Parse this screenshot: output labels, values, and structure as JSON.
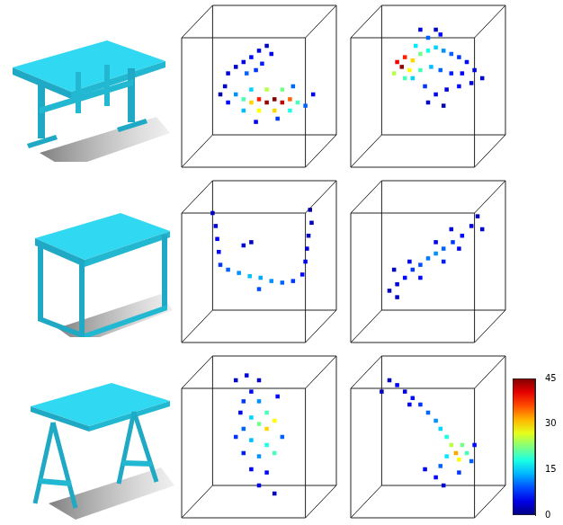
{
  "chart_data": [
    {
      "type": "scatter",
      "xlim": [
        0,
        100
      ],
      "ylim": [
        0,
        100
      ],
      "tick_labels": false,
      "grid": false,
      "x": [
        35,
        40,
        45,
        50,
        55,
        58,
        48,
        42,
        52,
        30,
        35,
        40,
        45,
        50,
        55,
        60,
        65,
        70,
        75,
        80,
        50,
        60,
        70,
        45,
        55,
        65,
        40,
        30,
        85,
        62,
        48,
        72,
        28,
        25
      ],
      "y": [
        62,
        65,
        68,
        72,
        75,
        70,
        60,
        58,
        64,
        58,
        45,
        42,
        40,
        42,
        40,
        42,
        40,
        42,
        40,
        38,
        35,
        35,
        35,
        48,
        48,
        48,
        35,
        40,
        45,
        30,
        28,
        50,
        50,
        45
      ],
      "values": [
        3,
        5,
        6,
        4,
        3,
        5,
        8,
        10,
        7,
        4,
        12,
        20,
        30,
        38,
        44,
        45,
        42,
        35,
        20,
        10,
        28,
        30,
        18,
        15,
        25,
        22,
        14,
        6,
        5,
        8,
        5,
        10,
        3,
        2
      ]
    },
    {
      "type": "scatter",
      "xlim": [
        0,
        100
      ],
      "ylim": [
        0,
        100
      ],
      "tick_labels": false,
      "grid": false,
      "x": [
        30,
        33,
        35,
        40,
        38,
        45,
        50,
        55,
        60,
        65,
        70,
        75,
        45,
        52,
        58,
        65,
        72,
        80,
        42,
        50,
        58,
        40,
        48,
        55,
        62,
        70,
        78,
        85,
        35,
        28,
        45,
        50,
        60,
        55
      ],
      "y": [
        65,
        62,
        68,
        66,
        60,
        70,
        72,
        74,
        72,
        70,
        68,
        65,
        60,
        62,
        60,
        58,
        58,
        60,
        75,
        80,
        82,
        55,
        50,
        45,
        48,
        50,
        52,
        55,
        55,
        58,
        85,
        40,
        38,
        85
      ],
      "values": [
        40,
        44,
        38,
        30,
        28,
        22,
        18,
        15,
        12,
        10,
        8,
        6,
        20,
        14,
        10,
        7,
        5,
        4,
        16,
        10,
        6,
        15,
        8,
        5,
        4,
        6,
        4,
        3,
        20,
        25,
        4,
        3,
        2,
        3
      ]
    },
    {
      "type": "scatter",
      "xlim": [
        0,
        100
      ],
      "ylim": [
        0,
        100
      ],
      "tick_labels": false,
      "grid": false,
      "x": [
        20,
        22,
        23,
        24,
        25,
        30,
        37,
        44,
        51,
        58,
        65,
        72,
        50,
        78,
        80,
        81,
        82,
        84,
        83,
        40,
        45
      ],
      "y": [
        80,
        72,
        64,
        56,
        48,
        45,
        43,
        41,
        40,
        38,
        37,
        38,
        33,
        42,
        50,
        58,
        66,
        74,
        82,
        60,
        62
      ],
      "values": [
        3,
        4,
        5,
        6,
        8,
        10,
        12,
        14,
        13,
        12,
        10,
        8,
        9,
        6,
        5,
        4,
        3,
        3,
        2,
        4,
        3
      ]
    },
    {
      "type": "scatter",
      "xlim": [
        0,
        100
      ],
      "ylim": [
        0,
        100
      ],
      "tick_labels": false,
      "grid": false,
      "x": [
        82,
        78,
        85,
        72,
        66,
        60,
        55,
        50,
        45,
        40,
        35,
        30,
        25,
        30,
        60,
        55,
        70,
        45,
        38,
        28,
        65
      ],
      "y": [
        78,
        72,
        70,
        66,
        62,
        58,
        55,
        52,
        48,
        45,
        40,
        36,
        32,
        28,
        50,
        62,
        58,
        40,
        50,
        45,
        70
      ],
      "values": [
        3,
        4,
        3,
        6,
        8,
        10,
        12,
        11,
        9,
        8,
        6,
        4,
        3,
        3,
        7,
        5,
        5,
        6,
        5,
        3,
        4
      ]
    },
    {
      "type": "scatter",
      "xlim": [
        0,
        100
      ],
      "ylim": [
        0,
        100
      ],
      "tick_labels": false,
      "grid": false,
      "x": [
        35,
        42,
        50,
        45,
        40,
        50,
        55,
        60,
        55,
        50,
        45,
        40,
        35,
        45,
        55,
        60,
        50,
        40,
        45,
        55,
        50,
        60,
        65,
        38,
        62
      ],
      "y": [
        85,
        88,
        85,
        78,
        72,
        72,
        65,
        60,
        55,
        58,
        62,
        55,
        50,
        48,
        45,
        40,
        38,
        40,
        30,
        28,
        20,
        15,
        50,
        65,
        75
      ],
      "values": [
        3,
        4,
        3,
        6,
        8,
        12,
        20,
        28,
        30,
        22,
        15,
        10,
        8,
        14,
        18,
        20,
        12,
        7,
        5,
        6,
        4,
        3,
        10,
        5,
        6
      ]
    },
    {
      "type": "scatter",
      "xlim": [
        0,
        100
      ],
      "ylim": [
        0,
        100
      ],
      "tick_labels": false,
      "grid": false,
      "x": [
        25,
        30,
        35,
        40,
        45,
        38,
        50,
        55,
        58,
        62,
        65,
        68,
        70,
        72,
        75,
        62,
        58,
        55,
        60,
        48,
        70,
        78,
        80,
        20
      ],
      "y": [
        85,
        82,
        78,
        74,
        70,
        70,
        65,
        60,
        55,
        50,
        45,
        40,
        36,
        45,
        40,
        38,
        32,
        25,
        20,
        30,
        28,
        35,
        45,
        78
      ],
      "values": [
        3,
        5,
        4,
        6,
        8,
        5,
        10,
        12,
        15,
        18,
        25,
        32,
        28,
        22,
        20,
        16,
        10,
        6,
        4,
        5,
        8,
        10,
        6,
        3
      ]
    }
  ],
  "colorbar": {
    "range": [
      0,
      45
    ],
    "ticks": [
      0,
      15,
      30,
      45
    ]
  }
}
